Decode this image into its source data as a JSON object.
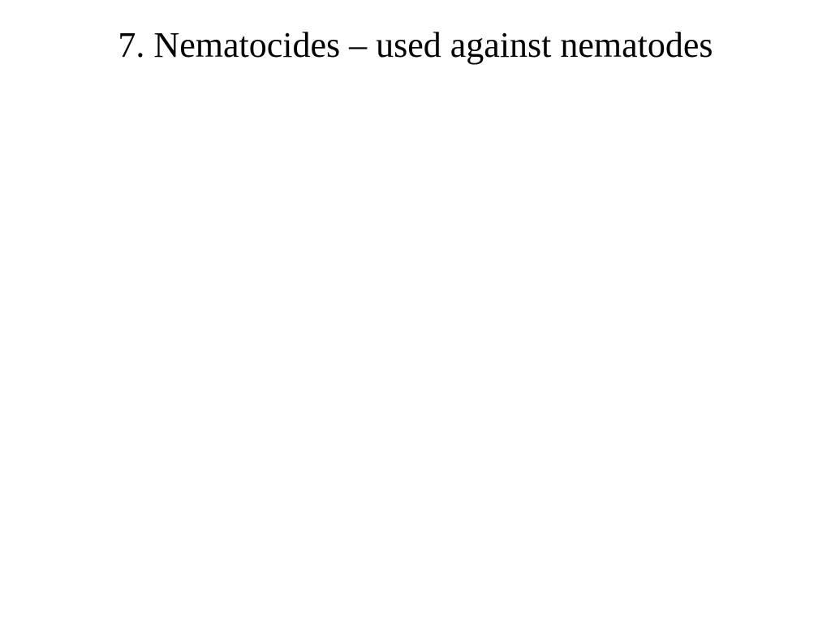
{
  "slide": {
    "title": "7. Nematocides – used against nematodes",
    "title_fontsize": 44,
    "title_color": "#000000",
    "background_color": "#ffffff",
    "font_family": "Times New Roman"
  }
}
